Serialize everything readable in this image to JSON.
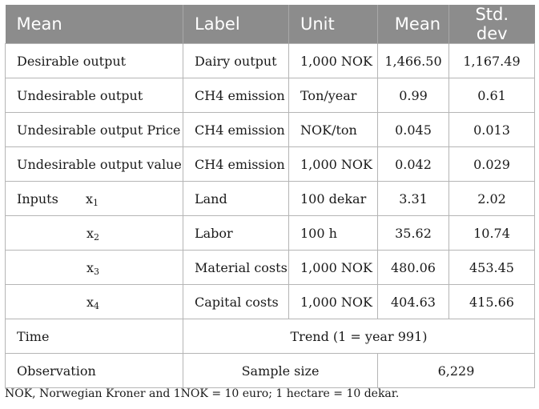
{
  "header": {
    "col1": "Mean",
    "col2": "Label",
    "col3": "Unit",
    "col4": "Mean",
    "col5": "Std. dev"
  },
  "rows": [
    {
      "name": "Desirable output",
      "label": "Dairy output",
      "unit": "1,000 NOK",
      "mean": "1,466.50",
      "sd": "1,167.49"
    },
    {
      "name": "Undesirable output",
      "label": "CH4 emission",
      "unit": "Ton/year",
      "mean": "0.99",
      "sd": "0.61"
    },
    {
      "name": "Undesirable output Price",
      "label": "CH4 emission",
      "unit": "NOK/ton",
      "mean": "0.045",
      "sd": "0.013"
    },
    {
      "name": "Undesirable output value",
      "label": "CH4 emission",
      "unit": "1,000 NOK",
      "mean": "0.042",
      "sd": "0.029"
    }
  ],
  "inputs": {
    "label": "Inputs",
    "symbol": "x",
    "items": [
      {
        "sub": "1",
        "label": "Land",
        "unit": "100 dekar",
        "mean": "3.31",
        "sd": "2.02"
      },
      {
        "sub": "2",
        "label": "Labor",
        "unit": "100 h",
        "mean": "35.62",
        "sd": "10.74"
      },
      {
        "sub": "3",
        "label": "Material costs",
        "unit": "1,000 NOK",
        "mean": "480.06",
        "sd": "453.45"
      },
      {
        "sub": "4",
        "label": "Capital costs",
        "unit": "1,000 NOK",
        "mean": "404.63",
        "sd": "415.66"
      }
    ]
  },
  "time": {
    "name": "Time",
    "value": "Trend (1 = year 991)"
  },
  "observation": {
    "name": "Observation",
    "label": "Sample size",
    "value": "6,229"
  },
  "footnote": "NOK, Norwegian Kroner and 1NOK = 10 euro; 1 hectare = 10 dekar."
}
